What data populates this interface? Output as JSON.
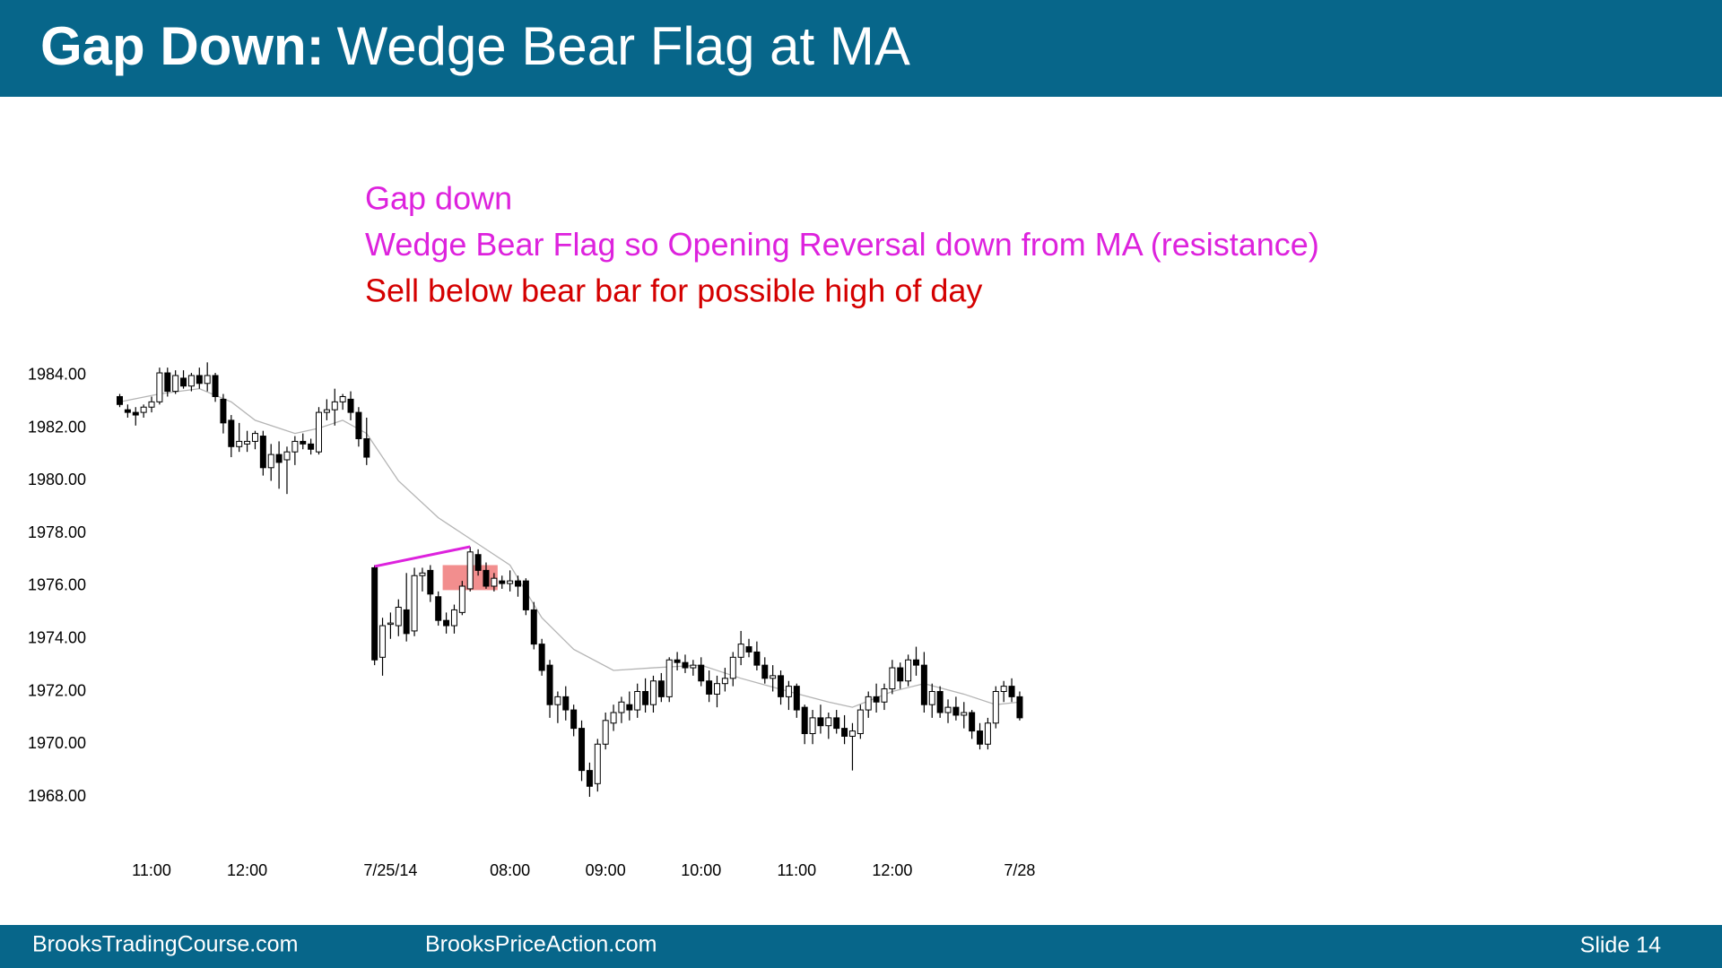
{
  "header": {
    "title_bold": "Gap Down:",
    "title_rest": "Wedge Bear Flag at MA"
  },
  "chart_data": {
    "type": "candlestick",
    "annotations": [
      {
        "text": "Gap down",
        "color": "#dd22dd"
      },
      {
        "text": "Wedge Bear Flag so Opening Reversal down from MA (resistance)",
        "color": "#dd22dd"
      },
      {
        "text": "Sell below bear bar for possible high of day",
        "color": "#d40000"
      }
    ],
    "categories": [
      null,
      null,
      null,
      null,
      "11:00",
      null,
      null,
      null,
      null,
      null,
      null,
      null,
      null,
      null,
      null,
      null,
      "12:00",
      null,
      null,
      null,
      null,
      null,
      null,
      null,
      null,
      null,
      null,
      null,
      null,
      null,
      null,
      null,
      null,
      null,
      "7/25/14",
      null,
      null,
      null,
      null,
      null,
      null,
      null,
      null,
      null,
      null,
      null,
      null,
      null,
      null,
      "08:00",
      null,
      null,
      null,
      null,
      null,
      null,
      null,
      null,
      null,
      null,
      null,
      "09:00",
      null,
      null,
      null,
      null,
      null,
      null,
      null,
      null,
      null,
      null,
      null,
      "10:00",
      null,
      null,
      null,
      null,
      null,
      null,
      null,
      null,
      null,
      null,
      null,
      "11:00",
      null,
      null,
      null,
      null,
      null,
      null,
      null,
      null,
      null,
      null,
      null,
      "12:00",
      null,
      null,
      null,
      null,
      null,
      null,
      null,
      null,
      null,
      null,
      null,
      null,
      null,
      null,
      null,
      "7/28"
    ],
    "open": [
      1983.2,
      1982.7,
      1982.6,
      1982.6,
      1982.8,
      1983.0,
      1984.1,
      1983.4,
      1983.9,
      1983.6,
      1984.0,
      1983.7,
      1984.0,
      1983.1,
      1982.3,
      1981.3,
      1981.4,
      1981.5,
      1981.7,
      1980.5,
      1981.0,
      1980.8,
      1981.1,
      1981.5,
      1981.4,
      1981.1,
      1982.6,
      1982.7,
      1983.0,
      1983.1,
      1982.6,
      1981.6,
      1976.7,
      1973.3,
      1974.6,
      1974.5,
      1975.1,
      1974.3,
      1976.4,
      1976.6,
      1975.6,
      1974.7,
      1974.5,
      1975.0,
      1975.9,
      1977.2,
      1976.6,
      1976.0,
      1976.2,
      1976.1,
      1976.2,
      1976.2,
      1975.1,
      1973.8,
      1973.0,
      1971.5,
      1971.8,
      1971.3,
      1970.6,
      1969.0,
      1968.5,
      1970.0,
      1970.8,
      1971.2,
      1971.5,
      1971.3,
      1972.0,
      1971.5,
      1972.4,
      1971.8,
      1973.2,
      1973.1,
      1972.9,
      1973.0,
      1972.4,
      1971.9,
      1972.3,
      1972.5,
      1973.3,
      1973.7,
      1973.5,
      1973.0,
      1972.5,
      1972.6,
      1971.8,
      1972.2,
      1971.4,
      1970.4,
      1971.0,
      1970.7,
      1971.0,
      1970.6,
      1970.3,
      1970.4,
      1971.3,
      1971.8,
      1971.6,
      1972.1,
      1972.9,
      1972.4,
      1973.2,
      1973.0,
      1971.5,
      1972.0,
      1971.2,
      1971.4,
      1971.1,
      1971.2,
      1970.5,
      1970.0,
      1970.8,
      1972.0,
      1972.2,
      1971.8
    ],
    "high": [
      1983.3,
      1982.9,
      1982.8,
      1982.9,
      1983.2,
      1984.3,
      1984.3,
      1984.2,
      1984.2,
      1984.1,
      1984.3,
      1984.5,
      1984.1,
      1983.3,
      1982.5,
      1982.2,
      1981.9,
      1981.9,
      1981.9,
      1981.4,
      1981.5,
      1981.3,
      1981.7,
      1981.8,
      1981.6,
      1982.8,
      1983.1,
      1983.5,
      1983.3,
      1983.4,
      1982.8,
      1982.4,
      1976.8,
      1974.8,
      1975.0,
      1975.5,
      1976.5,
      1976.7,
      1976.7,
      1976.8,
      1975.8,
      1975.0,
      1975.3,
      1976.2,
      1977.5,
      1977.4,
      1976.9,
      1976.5,
      1976.4,
      1976.6,
      1976.4,
      1976.3,
      1975.4,
      1974.0,
      1973.2,
      1972.0,
      1972.2,
      1971.5,
      1970.9,
      1969.3,
      1970.2,
      1971.2,
      1971.5,
      1971.8,
      1972.0,
      1972.3,
      1972.5,
      1972.6,
      1972.7,
      1973.3,
      1973.5,
      1973.4,
      1973.2,
      1973.3,
      1972.8,
      1972.6,
      1972.9,
      1973.5,
      1974.3,
      1974.0,
      1973.9,
      1973.3,
      1973.0,
      1972.8,
      1972.4,
      1972.3,
      1971.5,
      1971.3,
      1971.5,
      1971.2,
      1971.3,
      1971.1,
      1970.8,
      1971.5,
      1972.0,
      1972.3,
      1972.3,
      1973.2,
      1973.1,
      1973.4,
      1973.7,
      1973.5,
      1972.3,
      1972.2,
      1971.7,
      1971.8,
      1971.6,
      1971.3,
      1970.8,
      1971.0,
      1972.2,
      1972.4,
      1972.5,
      1972.0
    ],
    "low": [
      1982.8,
      1982.4,
      1982.1,
      1982.4,
      1982.6,
      1982.9,
      1983.2,
      1983.3,
      1983.5,
      1983.4,
      1983.5,
      1983.4,
      1983.0,
      1981.8,
      1980.9,
      1981.1,
      1981.1,
      1981.2,
      1980.2,
      1980.0,
      1979.7,
      1979.5,
      1980.6,
      1981.2,
      1981.0,
      1981.0,
      1982.3,
      1982.1,
      1982.7,
      1982.3,
      1981.3,
      1980.6,
      1973.0,
      1972.6,
      1974.0,
      1974.1,
      1973.9,
      1974.1,
      1975.8,
      1975.4,
      1974.5,
      1974.2,
      1974.2,
      1974.9,
      1975.8,
      1976.4,
      1975.9,
      1975.8,
      1975.9,
      1975.8,
      1975.6,
      1974.9,
      1973.6,
      1972.6,
      1971.0,
      1970.8,
      1970.9,
      1970.3,
      1968.6,
      1968.0,
      1968.2,
      1969.8,
      1970.5,
      1970.8,
      1970.9,
      1971.0,
      1971.2,
      1971.2,
      1971.6,
      1971.6,
      1972.8,
      1972.7,
      1972.6,
      1972.2,
      1971.6,
      1971.4,
      1972.0,
      1972.2,
      1973.0,
      1973.3,
      1972.8,
      1972.3,
      1972.0,
      1971.5,
      1971.3,
      1971.0,
      1970.0,
      1970.0,
      1970.4,
      1970.2,
      1970.4,
      1970.0,
      1969.0,
      1970.2,
      1971.0,
      1971.2,
      1971.3,
      1971.9,
      1972.1,
      1972.2,
      1972.6,
      1971.2,
      1971.0,
      1971.0,
      1970.8,
      1970.9,
      1970.6,
      1970.2,
      1969.8,
      1969.8,
      1970.6,
      1971.6,
      1971.6,
      1970.9
    ],
    "close": [
      1982.9,
      1982.6,
      1982.5,
      1982.8,
      1983.0,
      1984.1,
      1983.4,
      1984.0,
      1983.6,
      1984.0,
      1983.7,
      1984.0,
      1983.2,
      1982.2,
      1981.3,
      1981.5,
      1981.5,
      1981.8,
      1980.5,
      1981.0,
      1980.7,
      1981.1,
      1981.5,
      1981.4,
      1981.2,
      1982.6,
      1982.7,
      1983.0,
      1983.2,
      1982.6,
      1981.6,
      1980.9,
      1973.2,
      1974.5,
      1974.6,
      1975.2,
      1974.2,
      1976.4,
      1976.5,
      1975.7,
      1974.7,
      1974.5,
      1975.1,
      1976.0,
      1977.3,
      1976.6,
      1976.0,
      1976.3,
      1976.1,
      1976.2,
      1976.0,
      1975.1,
      1973.8,
      1972.8,
      1971.5,
      1971.8,
      1971.3,
      1970.6,
      1969.0,
      1968.4,
      1970.0,
      1970.9,
      1971.2,
      1971.6,
      1971.3,
      1972.0,
      1971.5,
      1972.4,
      1971.8,
      1973.2,
      1973.1,
      1972.9,
      1973.0,
      1972.4,
      1971.9,
      1972.3,
      1972.5,
      1973.3,
      1973.8,
      1973.5,
      1973.0,
      1972.5,
      1972.6,
      1971.8,
      1972.2,
      1971.3,
      1970.4,
      1971.0,
      1970.7,
      1971.0,
      1970.6,
      1970.3,
      1970.5,
      1971.3,
      1971.8,
      1971.6,
      1972.1,
      1972.9,
      1972.4,
      1973.2,
      1973.0,
      1971.5,
      1972.0,
      1971.2,
      1971.4,
      1971.1,
      1971.2,
      1970.5,
      1970.0,
      1970.8,
      1972.0,
      1972.2,
      1971.8,
      1971.0
    ],
    "bull_color": "#ffffff",
    "bear_color": "#000000",
    "ylim": [
      1967.5,
      1985
    ],
    "yticks": [
      {
        "value": 1968,
        "label": "1968.00"
      },
      {
        "value": 1970,
        "label": "1970.00"
      },
      {
        "value": 1972,
        "label": "1972.00"
      },
      {
        "value": 1974,
        "label": "1974.00"
      },
      {
        "value": 1976,
        "label": "1976.00"
      },
      {
        "value": 1978,
        "label": "1978.00"
      },
      {
        "value": 1980,
        "label": "1980.00"
      },
      {
        "value": 1982,
        "label": "1982.00"
      },
      {
        "value": 1984,
        "label": "1984.00"
      }
    ],
    "grid": false,
    "ma": {
      "color": "#b4b4b4",
      "x": [
        0,
        5,
        10,
        14,
        17,
        22,
        25,
        28,
        31,
        35,
        40,
        45,
        49,
        53,
        57,
        62,
        67,
        73,
        78,
        84,
        89,
        92,
        97,
        101,
        106,
        110,
        113
      ],
      "values": [
        1983.0,
        1983.3,
        1983.5,
        1983.0,
        1982.3,
        1981.8,
        1982.0,
        1982.3,
        1981.8,
        1980.0,
        1978.6,
        1977.6,
        1976.8,
        1974.8,
        1973.6,
        1972.8,
        1972.9,
        1973.0,
        1972.5,
        1972.0,
        1971.6,
        1971.4,
        1972.0,
        1972.3,
        1971.9,
        1971.5,
        1971.6
      ]
    },
    "wedge_line": {
      "color": "#dd22dd",
      "x": [
        32,
        44
      ],
      "values": [
        1976.75,
        1977.5
      ]
    },
    "highlight": {
      "color": "#f07a7a",
      "xrange": [
        41,
        47
      ],
      "yrange": [
        1975.85,
        1976.8
      ]
    }
  },
  "footer": {
    "left": "BrooksTradingCourse.com",
    "center": "BrooksPriceAction.com",
    "slide": "Slide 14"
  }
}
